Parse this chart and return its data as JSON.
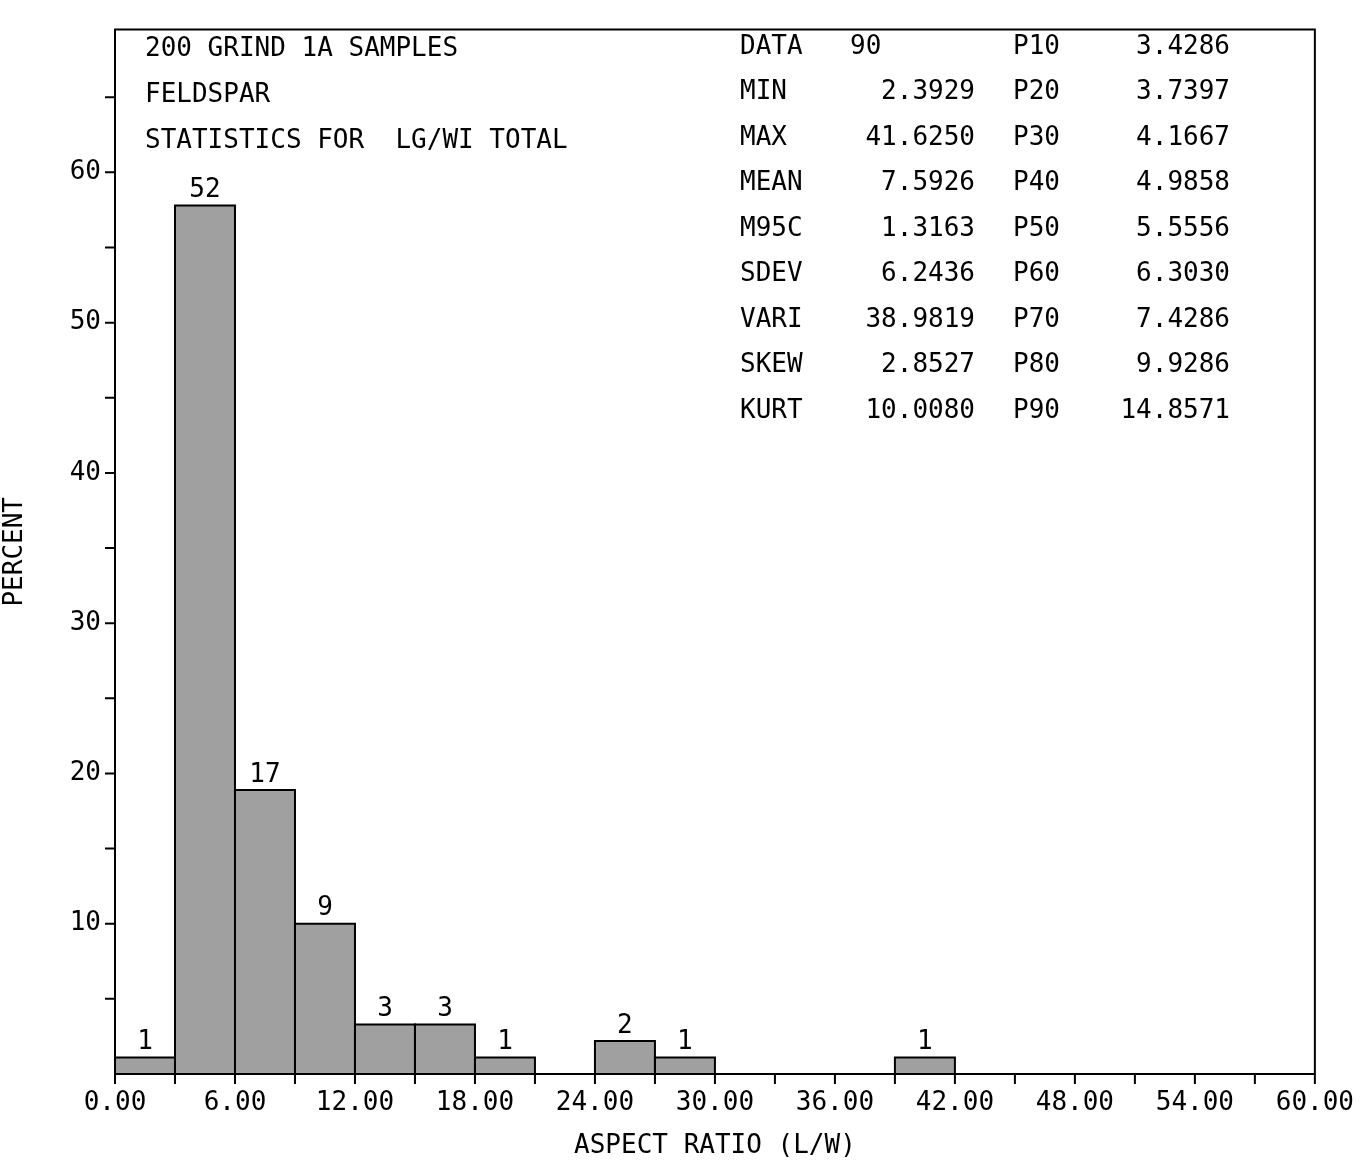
{
  "chart_data": {
    "type": "histogram",
    "xlabel": "ASPECT RATIO (L/W)",
    "ylabel": "PERCENT",
    "bins": [
      0,
      3,
      6,
      9,
      12,
      15,
      18,
      21,
      24,
      27,
      30,
      33,
      36,
      39,
      42
    ],
    "values": [
      1.1,
      57.8,
      18.9,
      10,
      3.3,
      3.3,
      1.1,
      0,
      2.2,
      1.1,
      0,
      0,
      0,
      1.1
    ],
    "color": "#a0a0a0",
    "xlim": [
      0,
      60
    ],
    "xticks": [
      {
        "value": 0,
        "label": "0.00"
      },
      {
        "value": 3,
        "label": null
      },
      {
        "value": 6,
        "label": "6.00"
      },
      {
        "value": 9,
        "label": null
      },
      {
        "value": 12,
        "label": "12.00"
      },
      {
        "value": 15,
        "label": null
      },
      {
        "value": 18,
        "label": "18.00"
      },
      {
        "value": 21,
        "label": null
      },
      {
        "value": 24,
        "label": "24.00"
      },
      {
        "value": 27,
        "label": null
      },
      {
        "value": 30,
        "label": "30.00"
      },
      {
        "value": 33,
        "label": null
      },
      {
        "value": 36,
        "label": "36.00"
      },
      {
        "value": 39,
        "label": null
      },
      {
        "value": 42,
        "label": "42.00"
      },
      {
        "value": 45,
        "label": null
      },
      {
        "value": 48,
        "label": "48.00"
      },
      {
        "value": 51,
        "label": null
      },
      {
        "value": 54,
        "label": "54.00"
      },
      {
        "value": 57,
        "label": null
      },
      {
        "value": 60,
        "label": "60.00"
      }
    ],
    "ylim": [
      0,
      69.5
    ],
    "yticks": [
      {
        "value": 5,
        "label": null
      },
      10,
      {
        "value": 15,
        "label": null
      },
      20,
      {
        "value": 25,
        "label": null
      },
      30,
      {
        "value": 35,
        "label": null
      },
      40,
      {
        "value": 45,
        "label": null
      },
      50,
      {
        "value": 55,
        "label": null
      },
      60,
      {
        "value": 65,
        "label": null
      }
    ],
    "grid": false,
    "legend": false,
    "annotations": [
      {
        "text": "1",
        "x": 1.5,
        "y": 1.1
      },
      {
        "text": "52",
        "x": 4.5,
        "y": 57.8
      },
      {
        "text": "17",
        "x": 7.5,
        "y": 18.9
      },
      {
        "text": "9",
        "x": 10.5,
        "y": 10
      },
      {
        "text": "3",
        "x": 13.5,
        "y": 3.3
      },
      {
        "text": "3",
        "x": 16.5,
        "y": 3.3
      },
      {
        "text": "1",
        "x": 19.5,
        "y": 1.1
      },
      {
        "text": "2",
        "x": 25.5,
        "y": 2.2
      },
      {
        "text": "1",
        "x": 28.5,
        "y": 1.1
      },
      {
        "text": "1",
        "x": 40.5,
        "y": 1.1
      },
      "200 GRIND 1A SAMPLES",
      "FELDSPAR",
      "STATISTICS FOR  LG/WI TOTAL",
      "DATA",
      "90",
      "P10",
      "3.4286",
      "MIN",
      "2.3929",
      "P20",
      "3.7397",
      "MAX",
      "41.6250",
      "P30",
      "4.1667",
      "MEAN",
      "7.5926",
      "P40",
      "4.9858",
      "M95C",
      "1.3163",
      "P50",
      "5.5556",
      "SDEV",
      "6.2436",
      "P60",
      "6.3030",
      "VARI",
      "38.9819",
      "P70",
      "7.4286",
      "SKEW",
      "2.8527",
      "P80",
      "9.9286",
      "KURT",
      "10.0080",
      "P90",
      "14.8571"
    ]
  }
}
